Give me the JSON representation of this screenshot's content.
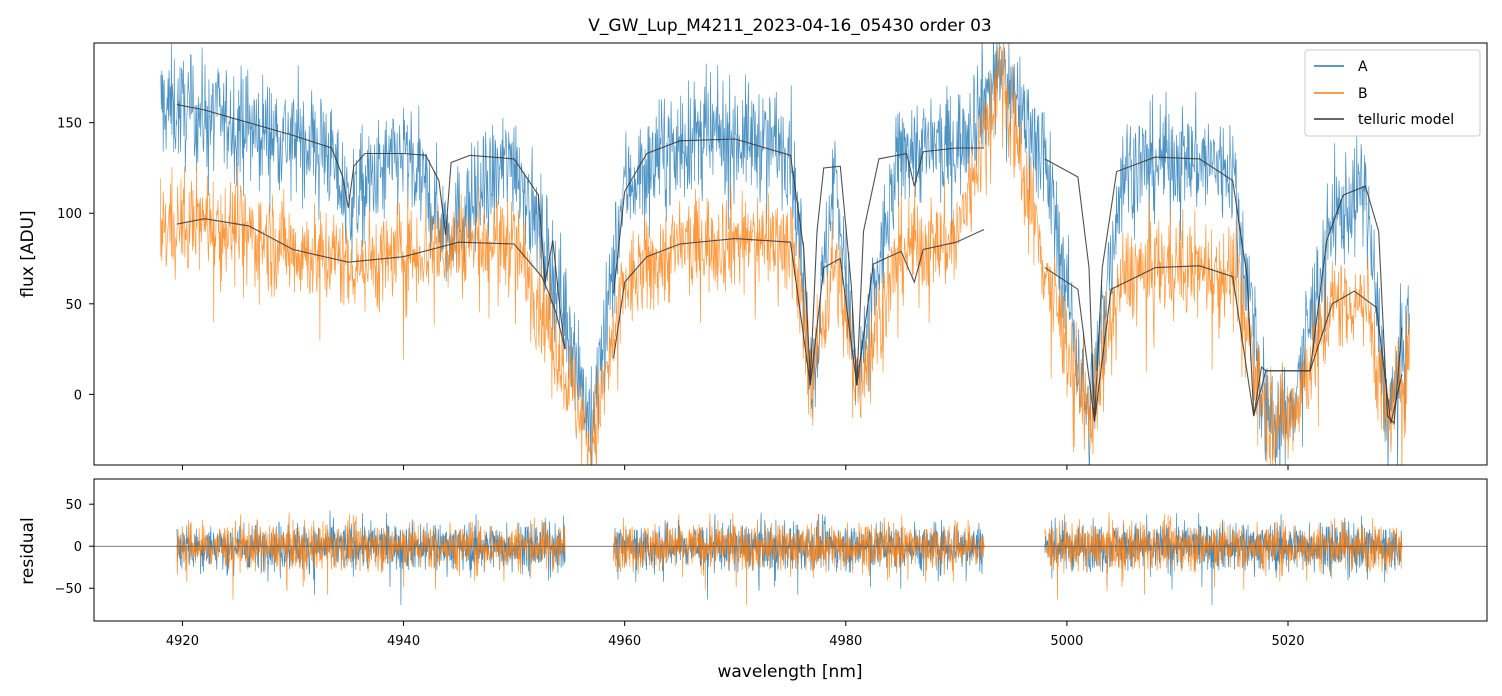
{
  "chart_data": [
    {
      "type": "line",
      "title": "V_GW_Lup_M4211_2023-04-16_05430  order 03",
      "xlabel": "",
      "ylabel": "flux [ADU]",
      "xlim": [
        4912,
        5038
      ],
      "ylim": [
        -39,
        194
      ],
      "x_ticks": [
        4920,
        4940,
        4960,
        4980,
        5000,
        5020
      ],
      "y_ticks": [
        0,
        50,
        100,
        150
      ],
      "y_tick_labels": [
        "0",
        "50",
        "100",
        "150"
      ],
      "grid": false,
      "legend": {
        "position": "top-right",
        "entries": [
          "A",
          "B",
          "telluric model"
        ]
      },
      "colors": {
        "A": "#1f77b4",
        "B": "#ff7f0e",
        "model": "#333333"
      },
      "series": [
        {
          "name": "A",
          "approx_continuum_points": {
            "x": [
              4918,
              4925,
              4933,
              4935,
              4940,
              4944,
              4950,
              4955,
              4957,
              4960,
              4965,
              4970,
              4975,
              4977,
              4979,
              4981,
              4985,
              4990,
              4994,
              4998,
              5002,
              5005,
              5010,
              5015,
              5018,
              5020,
              5024,
              5027,
              5029,
              5031
            ],
            "y": [
              160,
              150,
              137,
              105,
              133,
              90,
              132,
              40,
              -20,
              115,
              140,
              142,
              138,
              5,
              125,
              5,
              135,
              137,
              180,
              131,
              -15,
              125,
              131,
              125,
              -12,
              -15,
              95,
              115,
              -15,
              40
            ]
          }
        },
        {
          "name": "B",
          "approx_continuum_points": {
            "x": [
              4918,
              4922,
              4930,
              4936,
              4945,
              4950,
              4954,
              4957,
              4960,
              4965,
              4970,
              4975,
              4977,
              4979,
              4981,
              4985,
              4990,
              4994,
              4998,
              5002,
              5005,
              5010,
              5015,
              5018,
              5020,
              5024,
              5027,
              5029,
              5031
            ],
            "y": [
              93,
              97,
              80,
              73,
              83,
              85,
              25,
              -30,
              60,
              82,
              86,
              85,
              10,
              75,
              5,
              80,
              85,
              180,
              70,
              -15,
              65,
              72,
              67,
              -10,
              -15,
              50,
              55,
              -15,
              20
            ]
          }
        },
        {
          "name": "telluric model",
          "segments": [
            {
              "x": [
                4919.5,
                4922,
                4926,
                4930,
                4933.5,
                4934.5,
                4935.0,
                4935.5,
                4936.5,
                4940,
                4942,
                4943.2,
                4943.8,
                4944.3,
                4946,
                4950,
                4952.2,
                4952.8,
                4953.5,
                4954.2,
                4954.6
              ],
              "y": [
                160,
                157,
                150,
                143,
                136,
                120,
                103,
                126,
                133,
                133,
                132,
                118,
                88,
                128,
                132,
                130,
                110,
                62,
                85,
                45,
                25
              ]
            },
            {
              "x": [
                4959,
                4960,
                4962,
                4965,
                4970,
                4975,
                4976.2,
                4976.8,
                4977.4,
                4978,
                4979.5,
                4980.5,
                4981.0,
                4981.6,
                4983,
                4985.5,
                4986.2,
                4987,
                4990,
                4992.5
              ],
              "y": [
                56,
                112,
                133,
                140,
                141,
                132,
                80,
                8,
                90,
                125,
                126,
                60,
                5,
                90,
                130,
                133,
                115,
                134,
                136,
                136
              ]
            },
            {
              "x": [
                4998,
                5001,
                5002.0,
                5002.5,
                5003.2,
                5004.5,
                5008,
                5012,
                5015,
                5016.3,
                5016.9,
                5017.6,
                5018,
                5022,
                5023.5,
                5025,
                5027,
                5028.2,
                5029.0,
                5029.6,
                5030.3
              ],
              "y": [
                130,
                120,
                70,
                -15,
                70,
                123,
                131,
                130,
                118,
                65,
                -12,
                15,
                13,
                13,
                85,
                110,
                115,
                90,
                -12,
                -16,
                37
              ]
            },
            {
              "x": [
                4919.5,
                4922,
                4926,
                4930,
                4935,
                4940,
                4945,
                4950,
                4952.5,
                4953.2,
                4953.8,
                4954.6
              ],
              "y": [
                94,
                97,
                93,
                80,
                73,
                76,
                84,
                83,
                65,
                55,
                45,
                25
              ]
            },
            {
              "x": [
                4959,
                4960,
                4962,
                4965,
                4970,
                4975,
                4976.8,
                4978,
                4979.5,
                4981.0,
                4982.5,
                4985,
                4986.2,
                4987,
                4990,
                4992.5
              ],
              "y": [
                20,
                62,
                76,
                83,
                86,
                84,
                5,
                70,
                75,
                5,
                72,
                79,
                62,
                80,
                84,
                91
              ]
            },
            {
              "x": [
                4998,
                5001,
                5002.5,
                5004,
                5008,
                5012,
                5015,
                5016.9,
                5018,
                5022,
                5024,
                5026,
                5028,
                5029.3,
                5030.3
              ],
              "y": [
                70,
                58,
                -15,
                58,
                70,
                71,
                65,
                -12,
                13,
                13,
                50,
                57,
                48,
                -16,
                11
              ]
            }
          ]
        }
      ]
    },
    {
      "type": "line",
      "title": "",
      "xlabel": "wavelength [nm]",
      "ylabel": "residual",
      "xlim": [
        4912,
        5038
      ],
      "ylim": [
        -89,
        80
      ],
      "x_ticks": [
        4920,
        4940,
        4960,
        4980,
        5000,
        5020
      ],
      "x_tick_labels": [
        "4920",
        "4940",
        "4960",
        "4980",
        "5000",
        "5020"
      ],
      "y_ticks": [
        50,
        0,
        -50
      ],
      "y_tick_labels": [
        "50",
        "0",
        "−50"
      ],
      "zero_line": 0,
      "grid": false,
      "series": [
        {
          "name": "A",
          "segments_x": [
            [
              4919.5,
              4954.6
            ],
            [
              4959,
              4992.5
            ],
            [
              4998,
              5030.3
            ]
          ],
          "noise_amplitude": 40
        },
        {
          "name": "B",
          "segments_x": [
            [
              4919.5,
              4954.6
            ],
            [
              4959,
              4992.5
            ],
            [
              4998,
              5030.3
            ]
          ],
          "noise_amplitude": 40
        }
      ]
    }
  ]
}
